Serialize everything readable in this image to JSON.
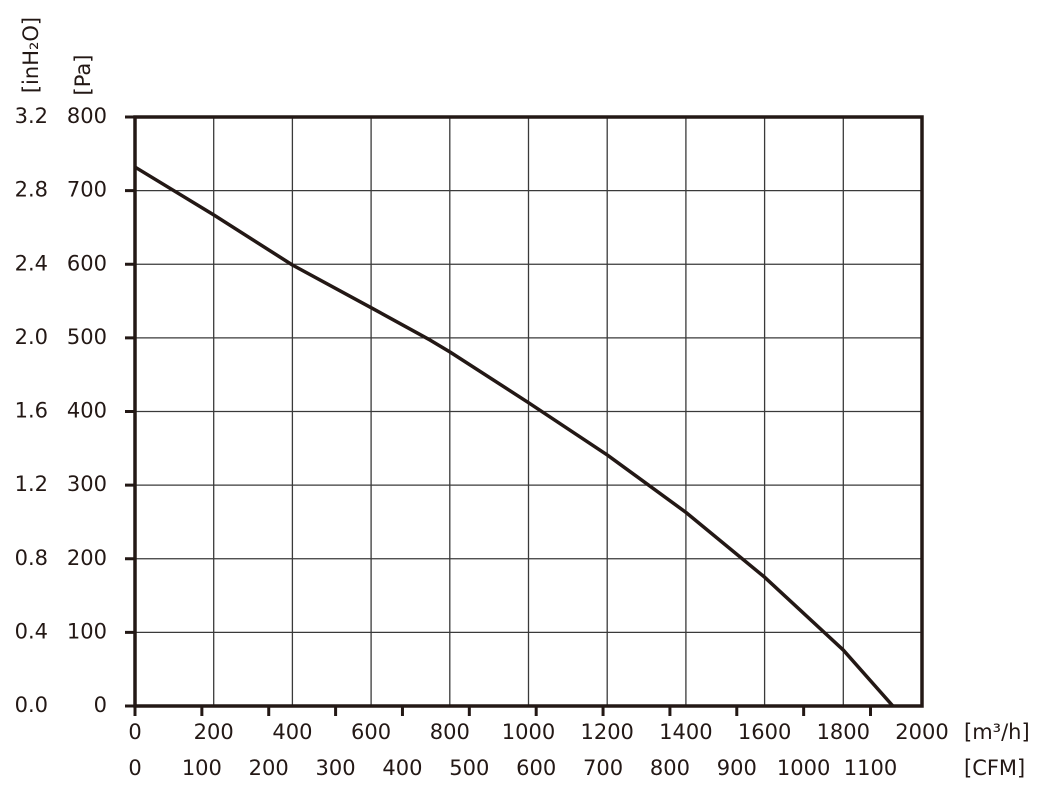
{
  "chart_data": {
    "type": "line",
    "x_label": "[m³/h]",
    "x2_label": "[CFM]",
    "y_label": "[Pa]",
    "y2_label": "[inH₂O]",
    "x": [
      0,
      200,
      400,
      600,
      750,
      800,
      1000,
      1200,
      1400,
      1600,
      1800,
      1926
    ],
    "values": [
      732,
      667,
      599,
      541,
      497,
      481,
      412,
      341,
      263,
      175,
      76,
      0
    ],
    "color": "#231815",
    "xlim": [
      0,
      2000
    ],
    "xticks": [
      0,
      200,
      400,
      600,
      800,
      1000,
      1200,
      1400,
      1600,
      1800,
      2000
    ],
    "x2lim": [
      0,
      1177
    ],
    "x2ticks": [
      0,
      100,
      200,
      300,
      400,
      500,
      600,
      700,
      800,
      900,
      1000,
      1100
    ],
    "ylim": [
      0,
      800
    ],
    "yticks": [
      0,
      100,
      200,
      300,
      400,
      500,
      600,
      700,
      800
    ],
    "y2lim": [
      0,
      3.2
    ],
    "y2ticks": [
      {
        "value": 0,
        "label": "0.0"
      },
      0.4,
      0.8,
      1.2,
      1.6,
      {
        "value": 2,
        "label": "2.0"
      },
      2.4,
      2.8,
      3.2
    ],
    "grid": true
  }
}
